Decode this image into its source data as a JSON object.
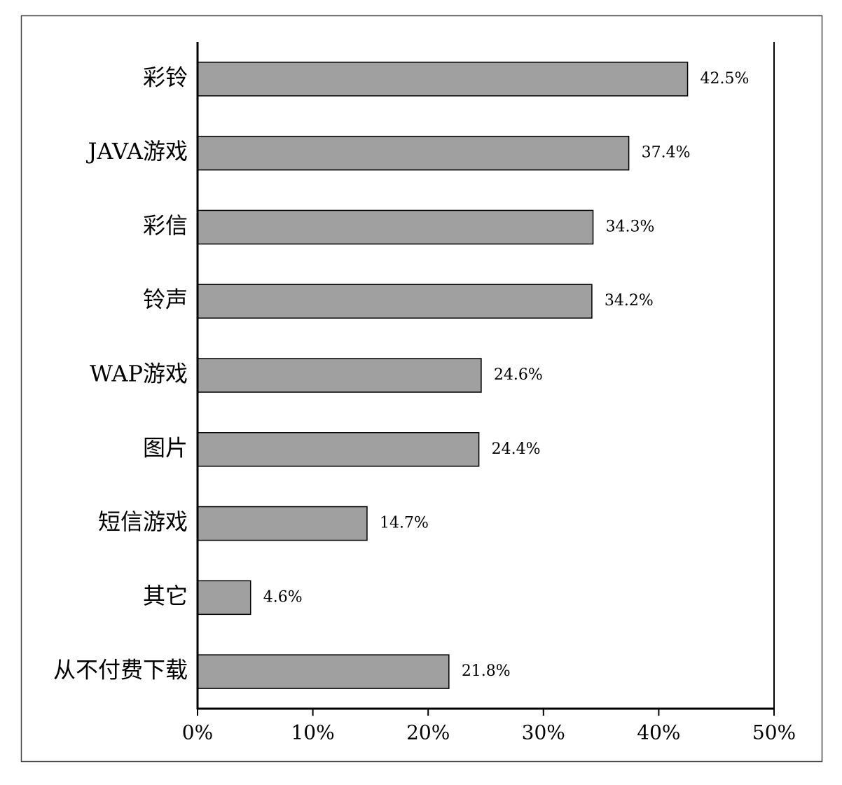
{
  "chart_data": {
    "type": "barh",
    "categories": [
      "彩铃",
      "JAVA游戏",
      "彩信",
      "铃声",
      "WAP游戏",
      "图片",
      "短信游戏",
      "其它",
      "从不付费下载"
    ],
    "values": [
      42.5,
      37.4,
      34.3,
      34.2,
      24.6,
      24.4,
      14.7,
      4.6,
      21.8
    ],
    "value_labels": [
      "42.5%",
      "37.4%",
      "34.3%",
      "34.2%",
      "24.6%",
      "24.4%",
      "14.7%",
      "4.6%",
      "21.8%"
    ],
    "color": "#a0a0a0",
    "xlim": [
      0,
      50
    ],
    "xticks": [
      {
        "value": 0,
        "label": "0%"
      },
      {
        "value": 10,
        "label": "10%"
      },
      {
        "value": 20,
        "label": "20%"
      },
      {
        "value": 30,
        "label": "30%"
      },
      {
        "value": 40,
        "label": "40%"
      },
      {
        "value": 50,
        "label": "50%"
      }
    ]
  }
}
